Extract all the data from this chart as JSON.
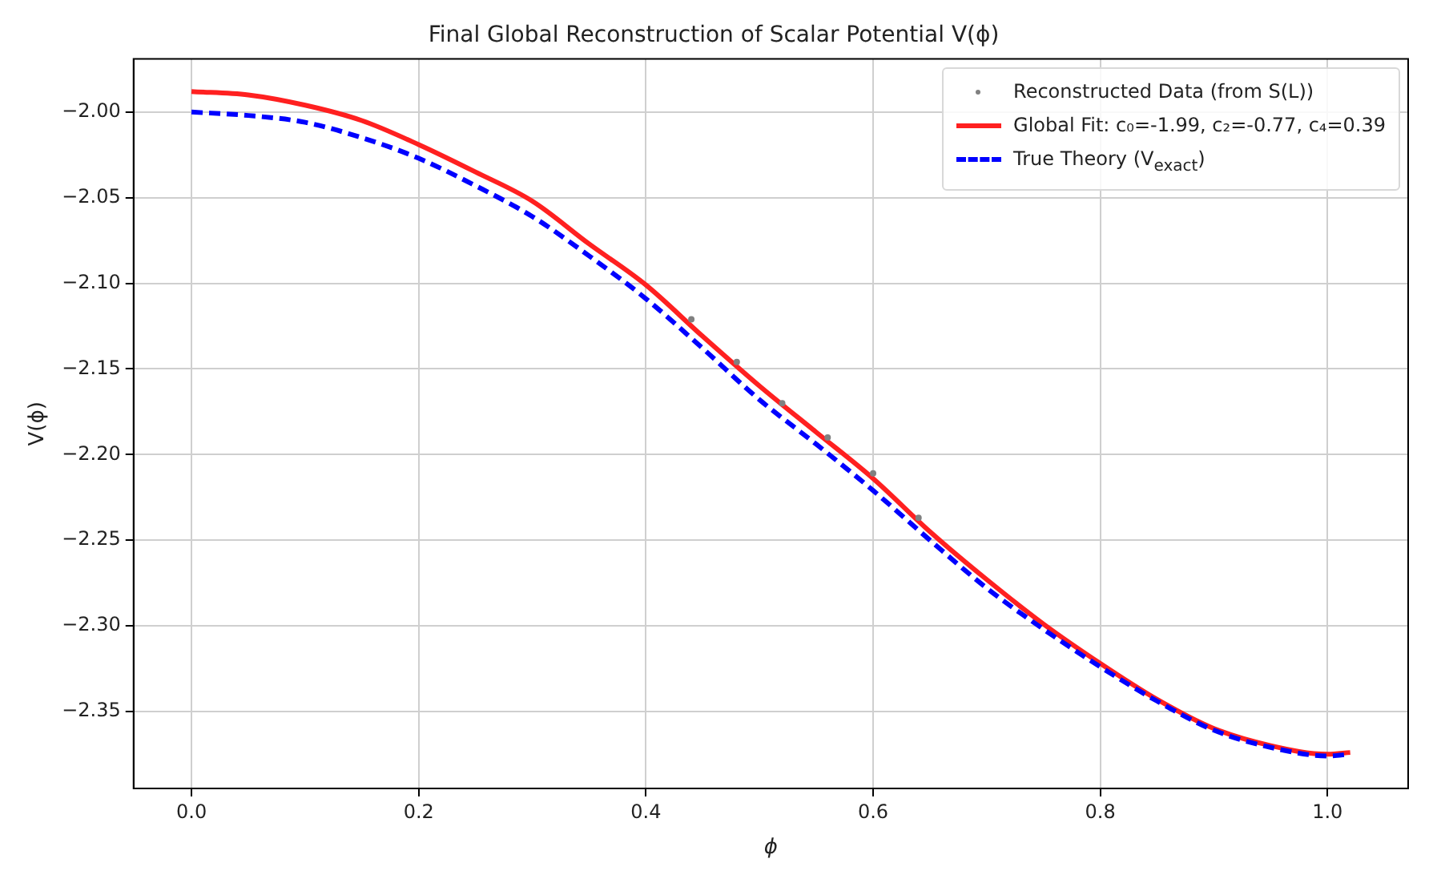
{
  "chart_data": {
    "type": "line",
    "title": "Final Global Reconstruction of Scalar Potential V(ϕ)",
    "xlabel": "ϕ",
    "ylabel": "V(ϕ)",
    "x": [
      0,
      0.05,
      0.1,
      0.15,
      0.2,
      0.25,
      0.3,
      0.35,
      0.4,
      0.45,
      0.5,
      0.55,
      0.6,
      0.65,
      0.7,
      0.75,
      0.8,
      0.85,
      0.9,
      0.95,
      1.0,
      1.02
    ],
    "series": [
      {
        "name": "Reconstructed Data (from S(L))",
        "type": "scatter",
        "marker": "circle",
        "color": "#808080",
        "x": [
          0.44,
          0.48,
          0.52,
          0.56,
          0.6,
          0.64
        ],
        "values": [
          -2.121,
          -2.146,
          -2.17,
          -2.19,
          -2.211,
          -2.237
        ]
      },
      {
        "name": "Global Fit: c₀=-1.99, c₂=-0.77, c₄=0.39",
        "color": "#ff2020",
        "line_style": "solid",
        "values": [
          -1.988,
          -1.99,
          -1.996,
          -2.005,
          -2.019,
          -2.035,
          -2.052,
          -2.077,
          -2.101,
          -2.131,
          -2.16,
          -2.187,
          -2.214,
          -2.245,
          -2.273,
          -2.299,
          -2.322,
          -2.343,
          -2.36,
          -2.37,
          -2.375,
          -2.374
        ]
      },
      {
        "name": "True Theory (V$_{exact}$)",
        "color": "#0000ff",
        "line_style": "dashed",
        "values": [
          -2.0,
          -2.002,
          -2.006,
          -2.015,
          -2.027,
          -2.043,
          -2.061,
          -2.084,
          -2.109,
          -2.138,
          -2.168,
          -2.194,
          -2.221,
          -2.25,
          -2.278,
          -2.302,
          -2.324,
          -2.344,
          -2.361,
          -2.371,
          -2.376,
          -2.375
        ]
      }
    ],
    "xlim": [
      -0.051,
      1.071
    ],
    "xticks": [
      {
        "value": 0,
        "label": "0.0"
      },
      {
        "value": 0.2,
        "label": "0.2"
      },
      {
        "value": 0.4,
        "label": "0.4"
      },
      {
        "value": 0.6,
        "label": "0.6"
      },
      {
        "value": 0.8,
        "label": "0.8"
      },
      {
        "value": 1.0,
        "label": "1.0"
      }
    ],
    "ylim": [
      -2.395,
      -1.969
    ],
    "yticks": [
      {
        "value": -2.0,
        "label": "−2.00"
      },
      {
        "value": -2.05,
        "label": "−2.05"
      },
      {
        "value": -2.1,
        "label": "−2.10"
      },
      {
        "value": -2.15,
        "label": "−2.15"
      },
      {
        "value": -2.2,
        "label": "−2.20"
      },
      {
        "value": -2.25,
        "label": "−2.25"
      },
      {
        "value": -2.3,
        "label": "−2.30"
      },
      {
        "value": -2.35,
        "label": "−2.35"
      }
    ],
    "grid": true,
    "legend": "top right"
  }
}
